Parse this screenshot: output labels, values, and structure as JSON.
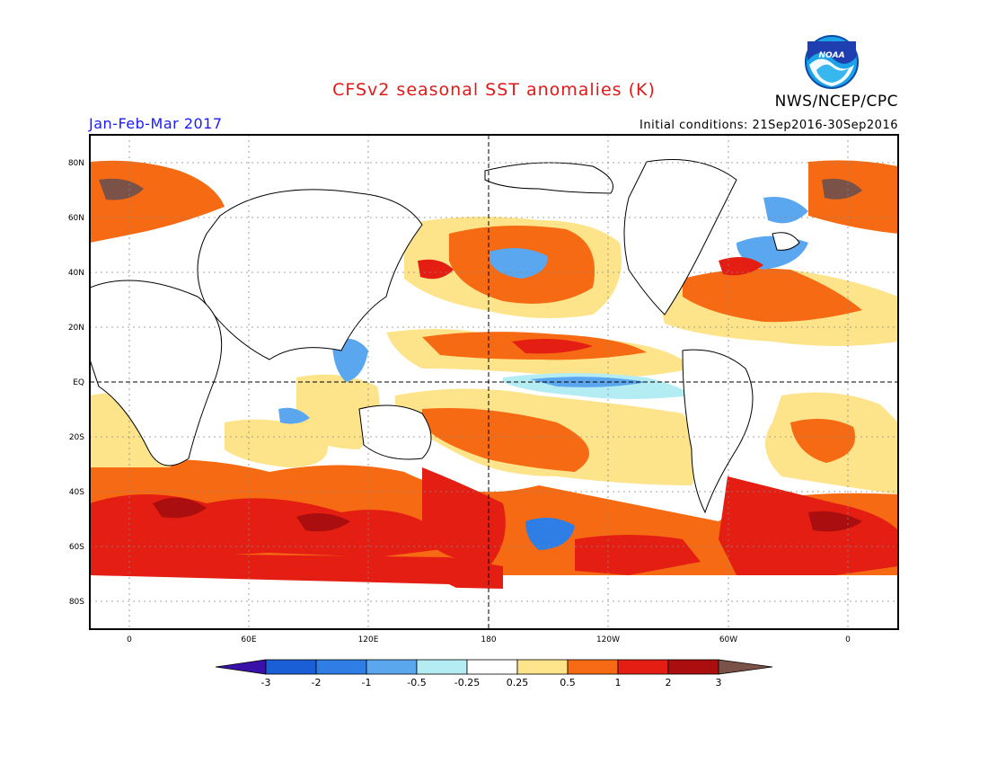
{
  "header": {
    "title": "CFSv2 seasonal SST anomalies (K)",
    "period": "Jan-Feb-Mar 2017",
    "initial_conditions": "Initial conditions: 21Sep2016-30Sep2016",
    "agency": "NWS/NCEP/CPC",
    "logo_text": "NOAA"
  },
  "map": {
    "lat_ticks": [
      "80N",
      "60N",
      "40N",
      "20N",
      "EQ",
      "20S",
      "40S",
      "60S",
      "80S"
    ],
    "lon_ticks": [
      "0",
      "60E",
      "120E",
      "180",
      "120W",
      "60W",
      "0"
    ]
  },
  "colorbar": {
    "labels": [
      "-3",
      "-2",
      "-1",
      "-0.5",
      "-0.25",
      "0.25",
      "0.5",
      "1",
      "2",
      "3"
    ],
    "colors": [
      "#3a11a8",
      "#1a5fd6",
      "#2f7ee6",
      "#5aa7f0",
      "#b4ecf4",
      "#ffffff",
      "#fde48a",
      "#f56a12",
      "#e41e12",
      "#aa0e0e",
      "#7a5248"
    ]
  },
  "palette": {
    "ocean_neutral": "#ffffff",
    "light_pos": "#fde48a",
    "orange": "#f56a12",
    "red": "#e41e12",
    "dark_red": "#aa0e0e",
    "brown": "#7a5248",
    "light_blue": "#5aa7f0",
    "mid_blue": "#2f7ee6",
    "cyan": "#b4ecf4"
  }
}
